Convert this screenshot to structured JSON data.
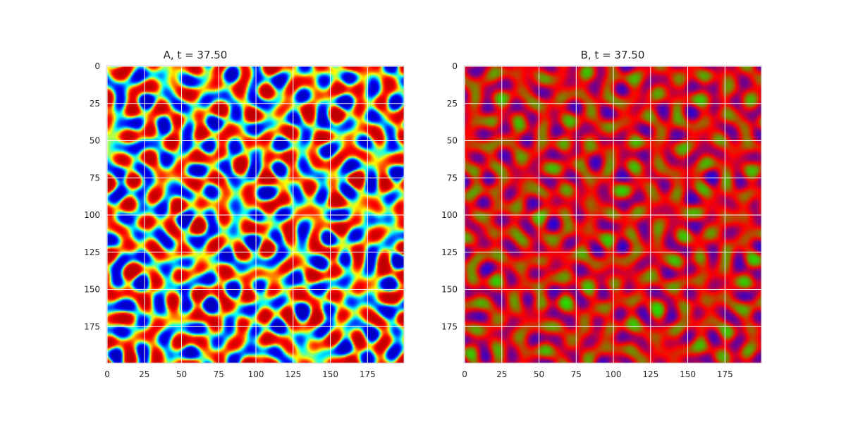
{
  "chart_data": [
    {
      "type": "heatmap",
      "title": "A, t = 37.50",
      "field": "A",
      "colormap": "jet",
      "grid": true,
      "xlim": [
        0,
        199
      ],
      "ylim": [
        199,
        0
      ],
      "xticks": [
        0,
        25,
        50,
        75,
        100,
        125,
        150,
        175
      ],
      "yticks": [
        0,
        25,
        50,
        75,
        100,
        125,
        150,
        175
      ]
    },
    {
      "type": "heatmap",
      "title": "B, t = 37.50",
      "field": "B",
      "colormap": "brg",
      "grid": true,
      "xlim": [
        0,
        199
      ],
      "ylim": [
        199,
        0
      ],
      "xticks": [
        0,
        25,
        50,
        75,
        100,
        125,
        150,
        175
      ],
      "yticks": [
        0,
        25,
        50,
        75,
        100,
        125,
        150,
        175
      ]
    }
  ],
  "colors": {
    "jet_low": "#00008f",
    "jet_high": "#8f0000",
    "brg_low": "#0000ff",
    "brg_mid": "#ff0000",
    "brg_high": "#00ff00",
    "grid": "#ffffff",
    "frame": "#cccccc"
  }
}
